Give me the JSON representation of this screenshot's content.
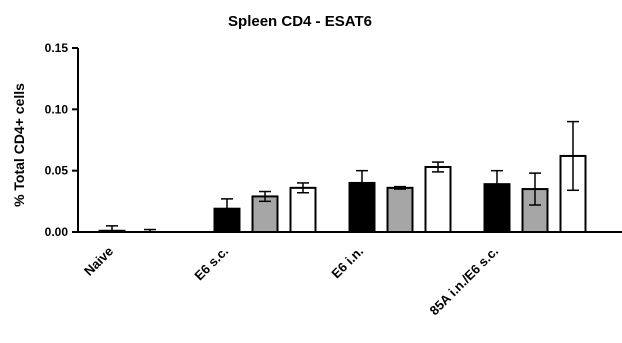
{
  "chart_data": {
    "type": "bar",
    "title": "Spleen CD4 - ESAT6",
    "ylabel": "% Total CD4+ cells",
    "xlabel": "",
    "ylim": [
      0,
      0.15
    ],
    "yticks": [
      "0.00",
      "0.05",
      "0.10",
      "0.15"
    ],
    "categories": [
      "Naive",
      "E6 s.c.",
      "E6 i.n.",
      "85A i.n./E6 s.c."
    ],
    "series": [
      {
        "color": "#000000",
        "values": [
          0.001,
          0.019,
          0.04,
          0.039
        ],
        "errors": [
          0.004,
          0.008,
          0.01,
          0.011
        ]
      },
      {
        "color": "#a6a6a6",
        "values": [
          0.0,
          0.029,
          0.036,
          0.035
        ],
        "errors": [
          0.002,
          0.004,
          0.001,
          0.013
        ]
      },
      {
        "color": "#ffffff",
        "values": [
          0.0,
          0.036,
          0.053,
          0.062
        ],
        "errors": [
          0.0,
          0.004,
          0.004,
          0.028
        ]
      }
    ],
    "grid": false,
    "legend": "none"
  }
}
